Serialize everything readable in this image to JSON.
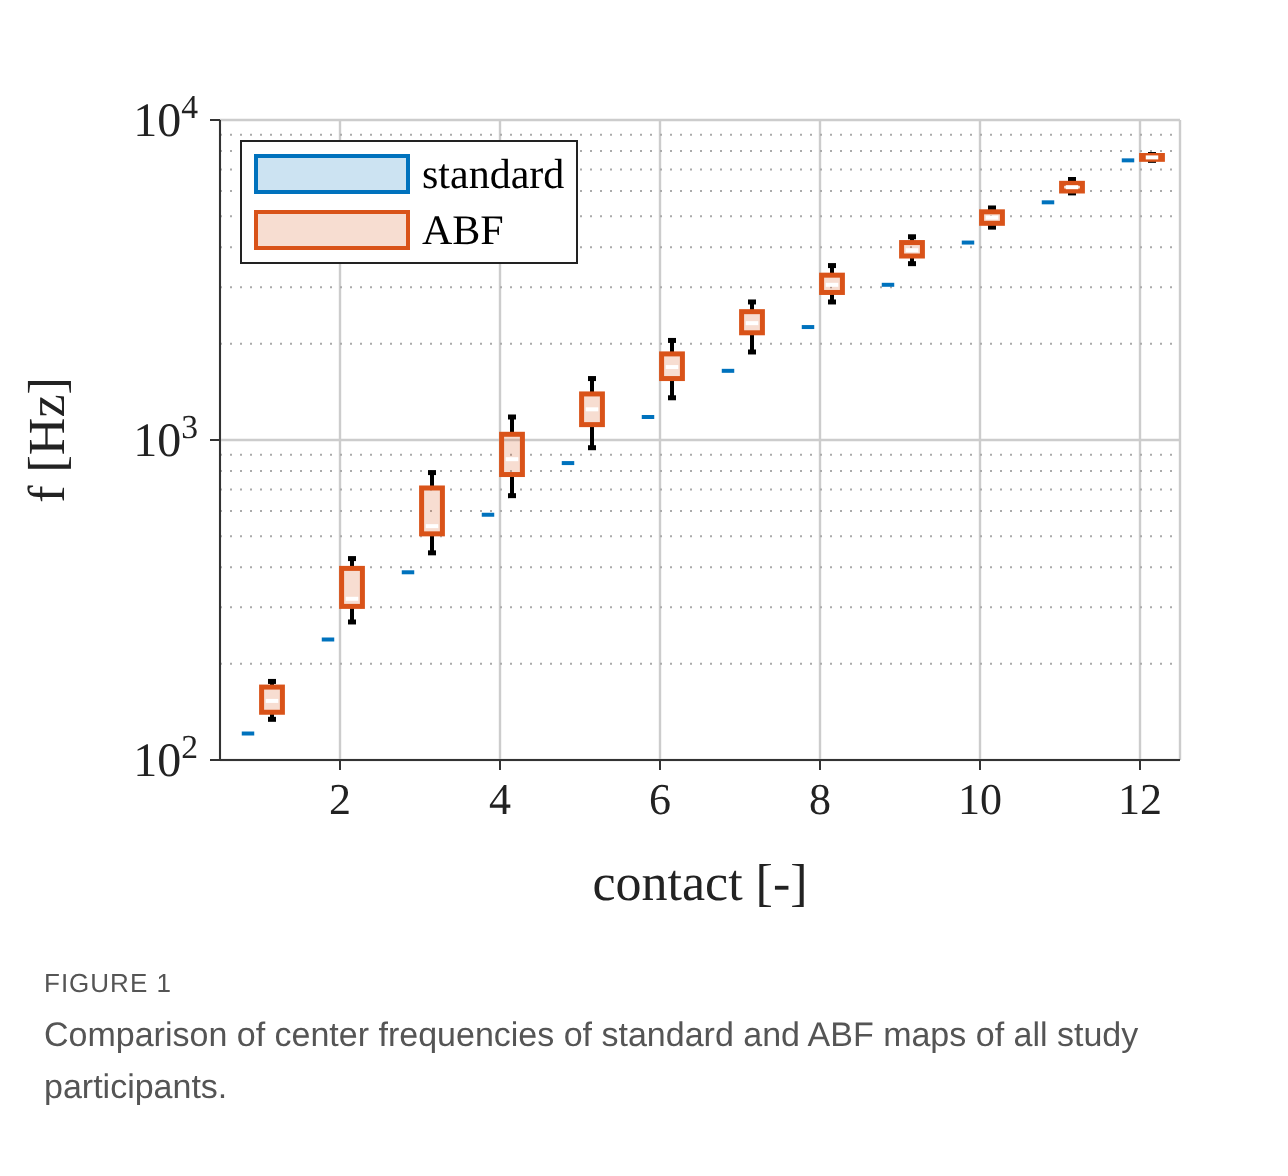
{
  "chart_data": {
    "type": "box",
    "xlabel": "contact [-]",
    "ylabel": "f [Hz]",
    "x": [
      1,
      2,
      3,
      4,
      5,
      6,
      7,
      8,
      9,
      10,
      11,
      12
    ],
    "xlim": [
      0.5,
      12.5
    ],
    "xticks": [
      2,
      4,
      6,
      8,
      10,
      12
    ],
    "ylim": [
      100,
      10000
    ],
    "yticks": [
      {
        "value": 100,
        "label": "10$^{2}$"
      },
      {
        "value": 1000,
        "label": "10$^{3}$"
      },
      {
        "value": 10000,
        "label": "10$^{4}$"
      }
    ],
    "log": "y",
    "grid": true,
    "legend": "top left",
    "series": [
      {
        "name": "standard",
        "color": "#0072bd",
        "boxes": [
          {
            "low": 121,
            "q1": 121,
            "median": 121,
            "q3": 121,
            "high": 121
          },
          {
            "low": 238,
            "q1": 238,
            "median": 238,
            "q3": 238,
            "high": 238
          },
          {
            "low": 386,
            "q1": 386,
            "median": 386,
            "q3": 386,
            "high": 386
          },
          {
            "low": 584,
            "q1": 584,
            "median": 584,
            "q3": 584,
            "high": 584
          },
          {
            "low": 847,
            "q1": 847,
            "median": 847,
            "q3": 847,
            "high": 847
          },
          {
            "low": 1180,
            "q1": 1180,
            "median": 1180,
            "q3": 1180,
            "high": 1180
          },
          {
            "low": 1645,
            "q1": 1645,
            "median": 1645,
            "q3": 1645,
            "high": 1645
          },
          {
            "low": 2254,
            "q1": 2254,
            "median": 2254,
            "q3": 2254,
            "high": 2254
          },
          {
            "low": 3055,
            "q1": 3055,
            "median": 3055,
            "q3": 3055,
            "high": 3055
          },
          {
            "low": 4140,
            "q1": 4140,
            "median": 4140,
            "q3": 4140,
            "high": 4140
          },
          {
            "low": 5530,
            "q1": 5530,
            "median": 5530,
            "q3": 5530,
            "high": 5530
          },
          {
            "low": 7480,
            "q1": 7480,
            "median": 7480,
            "q3": 7480,
            "high": 7480
          }
        ]
      },
      {
        "name": "ABF",
        "color": "#d95319",
        "boxes": [
          {
            "low": 134,
            "q1": 141,
            "median": 153,
            "q3": 169,
            "high": 176
          },
          {
            "low": 270,
            "q1": 302,
            "median": 319,
            "q3": 397,
            "high": 426
          },
          {
            "low": 444,
            "q1": 509,
            "median": 538,
            "q3": 708,
            "high": 791
          },
          {
            "low": 670,
            "q1": 780,
            "median": 871,
            "q3": 1042,
            "high": 1180
          },
          {
            "low": 946,
            "q1": 1117,
            "median": 1247,
            "q3": 1393,
            "high": 1556
          },
          {
            "low": 1355,
            "q1": 1556,
            "median": 1690,
            "q3": 1858,
            "high": 2047
          },
          {
            "low": 1884,
            "q1": 2163,
            "median": 2318,
            "q3": 2518,
            "high": 2700
          },
          {
            "low": 2700,
            "q1": 2891,
            "median": 3055,
            "q3": 3274,
            "high": 3508
          },
          {
            "low": 3557,
            "q1": 3758,
            "median": 3918,
            "q3": 4140,
            "high": 4316
          },
          {
            "low": 4626,
            "q1": 4755,
            "median": 4955,
            "q3": 5165,
            "high": 5310
          },
          {
            "low": 5918,
            "q1": 6000,
            "median": 6166,
            "q3": 6340,
            "high": 6516
          },
          {
            "low": 7480,
            "q1": 7535,
            "median": 7640,
            "q3": 7745,
            "high": 7800
          }
        ]
      }
    ],
    "annotations": [
      "FIGURE 1",
      "Comparison of center frequencies of standard and ABF maps of all study participants."
    ]
  }
}
